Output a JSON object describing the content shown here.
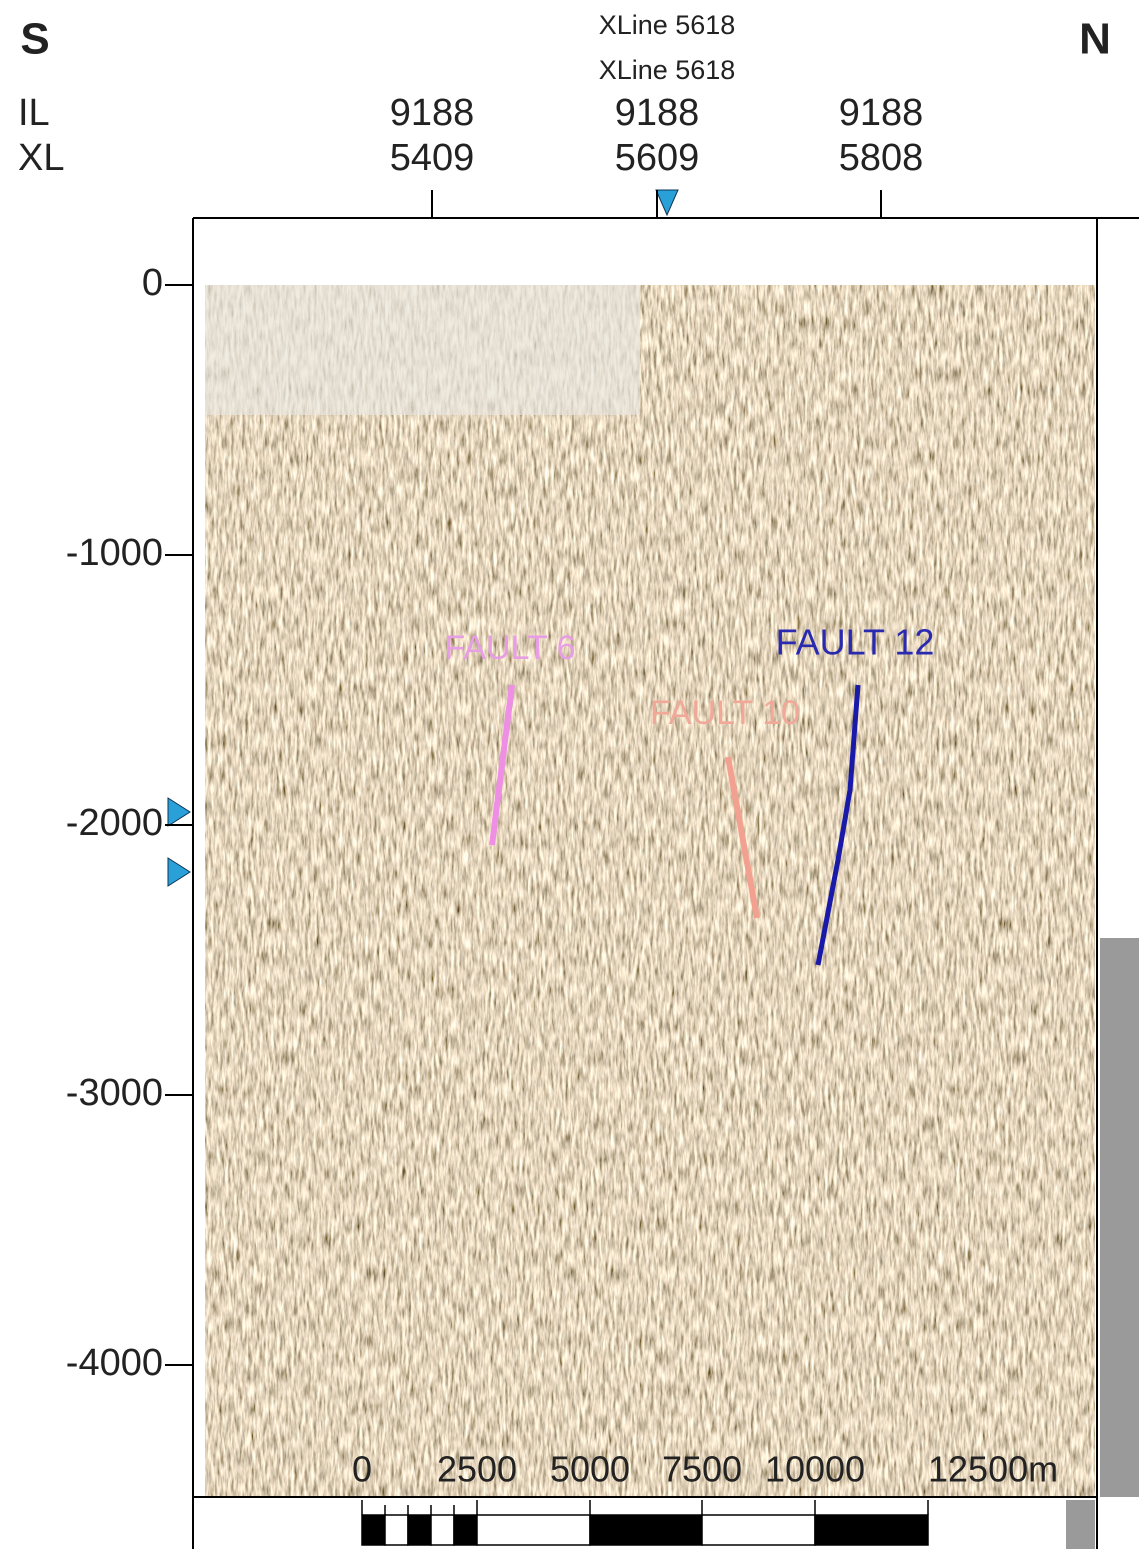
{
  "compass": {
    "left": "S",
    "right": "N"
  },
  "xline_labels": [
    "XLine 5618",
    "XLine 5618"
  ],
  "header_axis": {
    "row_labels": [
      "IL",
      "XL"
    ],
    "ticks": [
      {
        "il": "9188",
        "xl": "5409"
      },
      {
        "il": "9188",
        "xl": "5609"
      },
      {
        "il": "9188",
        "xl": "5808"
      }
    ]
  },
  "depth_axis": {
    "ticks": [
      "0",
      "-1000",
      "-2000",
      "-3000",
      "-4000"
    ]
  },
  "faults": [
    {
      "label": "FAULT 6"
    },
    {
      "label": "FAULT 10"
    },
    {
      "label": "FAULT 12"
    }
  ],
  "scale_bar": {
    "labels": [
      "0",
      "2500",
      "5000",
      "7500",
      "10000",
      "12500m"
    ]
  }
}
